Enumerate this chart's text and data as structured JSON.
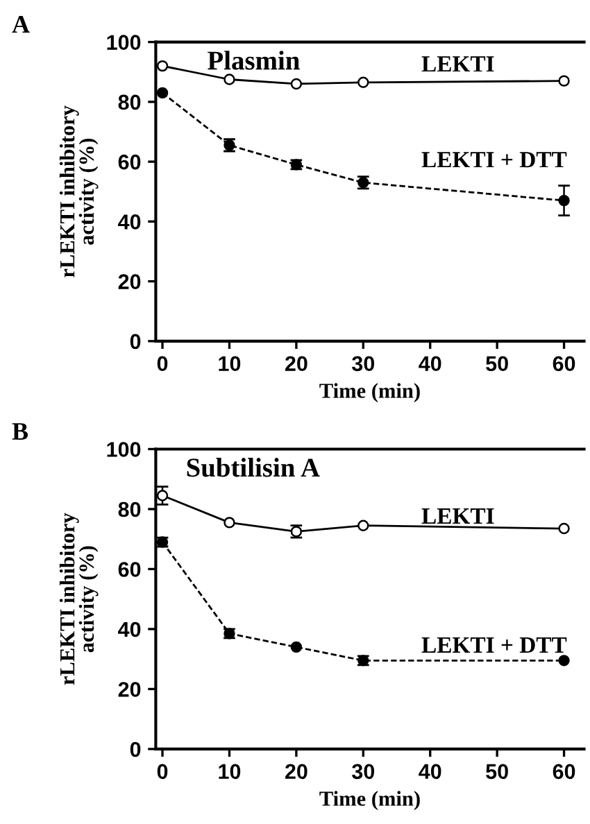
{
  "chart_data": [
    {
      "type": "line",
      "annotations": [
        "A",
        "Plasmin"
      ],
      "xlabel": "Time (min)",
      "ylabel": "rLEKTI inhibitory\nactivity (%)",
      "x": [
        0,
        10,
        20,
        30,
        60
      ],
      "xlim": [
        -1,
        63
      ],
      "xticks": [
        0,
        10,
        20,
        30,
        40,
        50,
        60
      ],
      "ylim": [
        0,
        100
      ],
      "yticks": [
        0,
        20,
        40,
        60,
        80,
        100
      ],
      "grid": false,
      "legend": false,
      "marker": "circle",
      "series": [
        {
          "name": "LEKTI",
          "color": "#000000",
          "values": [
            92,
            87.5,
            86,
            86.5,
            87
          ],
          "errors": [
            null,
            null,
            null,
            null,
            null
          ],
          "line_style": "solid"
        },
        {
          "name": "LEKTI + DTT",
          "color": "#000000",
          "values": [
            83,
            65.5,
            59,
            53,
            47
          ],
          "errors": [
            null,
            2,
            1.5,
            2,
            5
          ],
          "line_style": "dashed"
        }
      ]
    },
    {
      "type": "line",
      "annotations": [
        "B",
        "Subtilisin A"
      ],
      "xlabel": "Time (min)",
      "ylabel": "rLEKTI inhibitory\nactivity (%)",
      "x": [
        0,
        10,
        20,
        30,
        60
      ],
      "xlim": [
        -1,
        63
      ],
      "xticks": [
        0,
        10,
        20,
        30,
        40,
        50,
        60
      ],
      "ylim": [
        0,
        100
      ],
      "yticks": [
        0,
        20,
        40,
        60,
        80,
        100
      ],
      "grid": false,
      "legend": false,
      "marker": "circle",
      "series": [
        {
          "name": "LEKTI",
          "color": "#000000",
          "values": [
            84.5,
            75.5,
            72.5,
            74.5,
            73.5
          ],
          "errors": [
            3,
            null,
            2,
            null,
            null
          ],
          "line_style": "solid"
        },
        {
          "name": "LEKTI + DTT",
          "color": "#000000",
          "values": [
            69,
            38.5,
            34,
            29.5,
            29.5
          ],
          "errors": [
            1.5,
            1.5,
            null,
            1.5,
            null
          ],
          "line_style": "dashed"
        }
      ]
    }
  ]
}
